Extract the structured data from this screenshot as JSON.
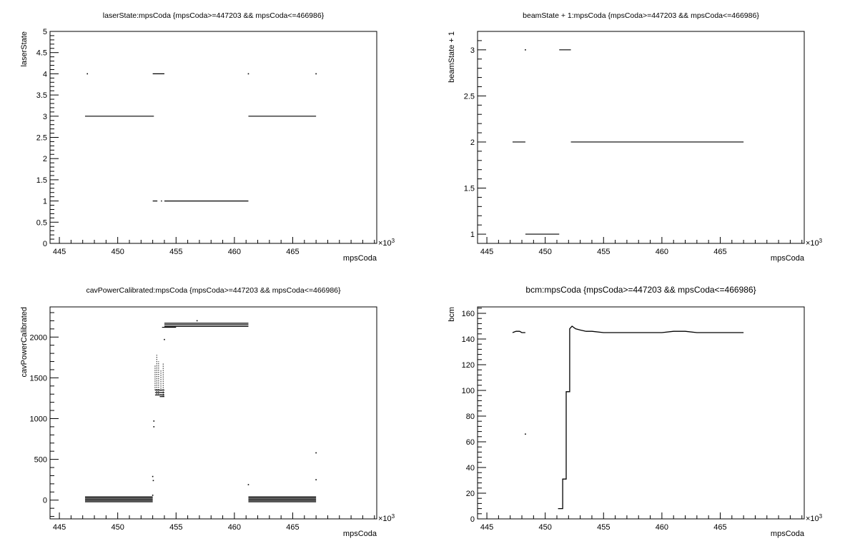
{
  "chart_data": [
    {
      "type": "scatter",
      "title": "laserState:mpsCoda {mpsCoda>=447203 && mpsCoda<=466986}",
      "xlabel": "mpsCoda",
      "ylabel": "laserState",
      "x_exponent_label": "×10",
      "x_exponent_power": "3",
      "xlim": [
        444.2,
        472.2
      ],
      "ylim": [
        0,
        5
      ],
      "x_ticks": [
        445,
        450,
        455,
        460,
        465
      ],
      "x_tick_labels": [
        "445",
        "450",
        "455",
        "460",
        "465"
      ],
      "y_ticks": [
        0,
        0.5,
        1,
        1.5,
        2,
        2.5,
        3,
        3.5,
        4,
        4.5,
        5
      ],
      "y_tick_labels": [
        "0",
        "0.5",
        "1",
        "1.5",
        "2",
        "2.5",
        "3",
        "3.5",
        "4",
        "4.5",
        "5"
      ],
      "segments": [
        {
          "x": [
            447.2,
            453.1
          ],
          "y": 3
        },
        {
          "x": [
            461.2,
            467.0
          ],
          "y": 3
        },
        {
          "x": [
            453.0,
            454.0
          ],
          "y": 4
        },
        {
          "x": [
            453.0,
            453.4
          ],
          "y": 1
        },
        {
          "x": [
            453.7,
            453.8
          ],
          "y": 1
        },
        {
          "x": [
            454.0,
            461.2
          ],
          "y": 1
        }
      ],
      "points": [
        [
          447.4,
          4
        ],
        [
          461.2,
          4
        ],
        [
          467.0,
          4
        ]
      ]
    },
    {
      "type": "scatter",
      "title": "beamState + 1:mpsCoda {mpsCoda>=447203 && mpsCoda<=466986}",
      "xlabel": "mpsCoda",
      "ylabel": "beamState + 1",
      "x_exponent_label": "×10",
      "x_exponent_power": "3",
      "xlim": [
        444.2,
        472.2
      ],
      "ylim": [
        0.9,
        3.2
      ],
      "x_ticks": [
        445,
        450,
        455,
        460,
        465
      ],
      "x_tick_labels": [
        "445",
        "450",
        "455",
        "460",
        "465"
      ],
      "y_ticks": [
        1,
        1.5,
        2,
        2.5,
        3
      ],
      "y_tick_labels": [
        "1",
        "1.5",
        "2",
        "2.5",
        "3"
      ],
      "segments": [
        {
          "x": [
            447.2,
            448.3
          ],
          "y": 2
        },
        {
          "x": [
            448.3,
            451.2
          ],
          "y": 1
        },
        {
          "x": [
            451.2,
            452.2
          ],
          "y": 3
        },
        {
          "x": [
            452.2,
            467.0
          ],
          "y": 2
        }
      ],
      "points": [
        [
          448.3,
          3
        ]
      ]
    },
    {
      "type": "scatter",
      "title": "cavPowerCalibrated:mpsCoda {mpsCoda>=447203 && mpsCoda<=466986}",
      "xlabel": "mpsCoda",
      "ylabel": "cavPowerCalibrated",
      "x_exponent_label": "×10",
      "x_exponent_power": "3",
      "xlim": [
        444.2,
        472.2
      ],
      "ylim": [
        -230,
        2370
      ],
      "x_ticks": [
        445,
        450,
        455,
        460,
        465
      ],
      "x_tick_labels": [
        "445",
        "450",
        "455",
        "460",
        "465"
      ],
      "y_ticks": [
        0,
        500,
        1000,
        1500,
        2000
      ],
      "y_tick_labels": [
        "0",
        "500",
        "1000",
        "1500",
        "2000"
      ],
      "segments": [
        {
          "x": [
            447.2,
            453.0
          ],
          "y": 40
        },
        {
          "x": [
            447.2,
            453.0
          ],
          "y": 25
        },
        {
          "x": [
            447.2,
            453.0
          ],
          "y": 10
        },
        {
          "x": [
            447.2,
            453.0
          ],
          "y": -5
        },
        {
          "x": [
            447.2,
            453.0
          ],
          "y": -20
        },
        {
          "x": [
            461.2,
            467.0
          ],
          "y": 40
        },
        {
          "x": [
            461.2,
            467.0
          ],
          "y": 25
        },
        {
          "x": [
            461.2,
            467.0
          ],
          "y": 10
        },
        {
          "x": [
            461.2,
            467.0
          ],
          "y": -5
        },
        {
          "x": [
            461.2,
            467.0
          ],
          "y": -20
        },
        {
          "x": [
            454.0,
            461.2
          ],
          "y": 2170
        },
        {
          "x": [
            454.0,
            461.2
          ],
          "y": 2150
        },
        {
          "x": [
            454.0,
            461.2
          ],
          "y": 2130
        },
        {
          "x": [
            453.8,
            455.0
          ],
          "y": 2120
        },
        {
          "x": [
            453.2,
            454.0
          ],
          "y": 1350
        },
        {
          "x": [
            453.2,
            454.0
          ],
          "y": 1320
        },
        {
          "x": [
            453.2,
            454.0
          ],
          "y": 1290
        },
        {
          "x": [
            453.6,
            454.0
          ],
          "y": 1270
        }
      ],
      "columns": [
        {
          "x": 453.2,
          "y": [
            1350,
            1650
          ]
        },
        {
          "x": 453.35,
          "y": [
            1300,
            1780
          ]
        },
        {
          "x": 453.5,
          "y": [
            1300,
            1700
          ]
        },
        {
          "x": 453.7,
          "y": [
            1290,
            1600
          ]
        },
        {
          "x": 453.9,
          "y": [
            1270,
            1680
          ]
        }
      ],
      "points": [
        [
          456.8,
          2200
        ],
        [
          454.0,
          1970
        ],
        [
          453.1,
          970
        ],
        [
          453.1,
          900
        ],
        [
          453.0,
          290
        ],
        [
          453.05,
          240
        ],
        [
          461.2,
          190
        ],
        [
          467.0,
          580
        ],
        [
          467.0,
          250
        ],
        [
          453.0,
          60
        ]
      ]
    },
    {
      "type": "line",
      "title": "bcm:mpsCoda {mpsCoda>=447203 && mpsCoda<=466986}",
      "xlabel": "mpsCoda",
      "ylabel": "bcm",
      "x_exponent_label": "×10",
      "x_exponent_power": "3",
      "xlim": [
        444.2,
        472.2
      ],
      "ylim": [
        0,
        165
      ],
      "x_ticks": [
        445,
        450,
        455,
        460,
        465
      ],
      "x_tick_labels": [
        "445",
        "450",
        "455",
        "460",
        "465"
      ],
      "y_ticks": [
        0,
        20,
        40,
        60,
        80,
        100,
        120,
        140,
        160
      ],
      "y_tick_labels": [
        "0",
        "20",
        "40",
        "60",
        "80",
        "100",
        "120",
        "140",
        "160"
      ],
      "series": [
        {
          "x": [
            447.2,
            447.5,
            447.8,
            448.0,
            448.3
          ],
          "y": [
            145,
            146,
            146,
            145,
            145
          ]
        },
        {
          "x": [
            451.1,
            451.5,
            451.5,
            451.8,
            451.8,
            452.1,
            452.1,
            452.3,
            452.6,
            453.0,
            453.5,
            454.0,
            455.0,
            456.0,
            457.0,
            458.0,
            459.0,
            460.0,
            461.0,
            462.0,
            463.0,
            464.0,
            465.0,
            466.0,
            467.0
          ],
          "y": [
            8,
            8,
            31,
            31,
            99,
            99,
            148,
            150,
            148,
            147,
            146,
            146,
            145,
            145,
            145,
            145,
            145,
            145,
            146,
            146,
            145,
            145,
            145,
            145,
            145
          ]
        }
      ],
      "points": [
        [
          448.3,
          66
        ]
      ]
    }
  ]
}
